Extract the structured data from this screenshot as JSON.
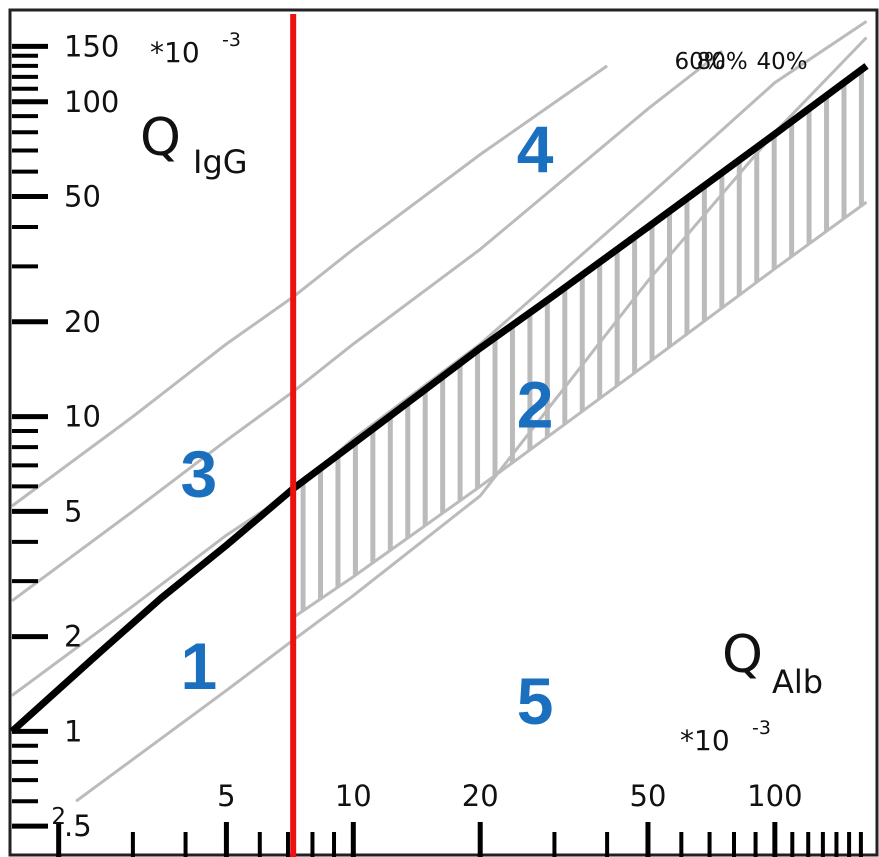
{
  "chart_data": {
    "type": "line",
    "x_scale": "log",
    "y_scale": "log",
    "xlim": [
      1.55,
      170
    ],
    "ylim": [
      0.42,
      190
    ],
    "x_tick_labels": [
      {
        "x": 2,
        "label": "2"
      },
      {
        "x": 5,
        "label": "5"
      },
      {
        "x": 10,
        "label": "10"
      },
      {
        "x": 20,
        "label": "20"
      },
      {
        "x": 50,
        "label": "50"
      },
      {
        "x": 100,
        "label": "100"
      }
    ],
    "y_tick_labels": [
      {
        "y": 0.5,
        "label": ".5"
      },
      {
        "y": 1,
        "label": "1"
      },
      {
        "y": 2,
        "label": "2"
      },
      {
        "y": 5,
        "label": "5"
      },
      {
        "y": 10,
        "label": "10"
      },
      {
        "y": 20,
        "label": "20"
      },
      {
        "y": 50,
        "label": "50"
      },
      {
        "y": 100,
        "label": "100"
      },
      {
        "y": 150,
        "label": "150"
      }
    ],
    "x_minor_ticks": [
      3,
      4,
      6,
      7,
      8,
      9,
      30,
      40,
      60,
      70,
      80,
      90,
      110,
      120,
      130,
      140,
      150,
      160
    ],
    "y_minor_ticks": [
      0.6,
      0.7,
      0.8,
      0.9,
      3,
      4,
      6,
      7,
      8,
      9,
      30,
      40,
      60,
      70,
      80,
      90,
      110,
      120,
      130,
      140
    ],
    "xlabel": {
      "main": "Q",
      "sub": "Alb",
      "factor": "*10",
      "exponent": "-3"
    },
    "ylabel": {
      "main": "Q",
      "sub": "IgG",
      "factor": "*10",
      "exponent": "-3"
    },
    "cutoff_line": {
      "x": 7.2,
      "color": "#ee1111"
    },
    "series": [
      {
        "role": "upper reference limit",
        "color": "#000000",
        "points": [
          [
            1.55,
            1.0
          ],
          [
            2.5,
            1.78
          ],
          [
            3.5,
            2.65
          ],
          [
            5,
            3.9
          ],
          [
            7.2,
            5.9
          ],
          [
            10,
            8.2
          ],
          [
            20,
            16.5
          ],
          [
            30,
            24.3
          ],
          [
            50,
            40
          ],
          [
            100,
            79
          ],
          [
            165,
            130
          ]
        ]
      },
      {
        "role": "lower reference limit",
        "color": "#bbbbbb",
        "points": [
          [
            7.2,
            2.3
          ],
          [
            10,
            3.1
          ],
          [
            20,
            6.0
          ],
          [
            50,
            14.8
          ],
          [
            100,
            29.5
          ],
          [
            165,
            48
          ]
        ]
      },
      {
        "role": "fraction line",
        "label": "40%",
        "color": "#bbbbbb",
        "points": [
          [
            2.2,
            0.6
          ],
          [
            5,
            1.35
          ],
          [
            7.2,
            1.95
          ],
          [
            10,
            2.7
          ],
          [
            20,
            5.6
          ],
          [
            50,
            27
          ],
          [
            100,
            80
          ],
          [
            165,
            160
          ]
        ]
      },
      {
        "role": "fraction line",
        "label": "60%",
        "color": "#bbbbbb",
        "points": [
          [
            1.55,
            1.3
          ],
          [
            3,
            2.5
          ],
          [
            5,
            4.2
          ],
          [
            7.2,
            5.8
          ],
          [
            10,
            8.5
          ],
          [
            20,
            17
          ],
          [
            50,
            50
          ],
          [
            100,
            115
          ],
          [
            165,
            180
          ]
        ]
      },
      {
        "role": "fraction line",
        "label": "80%",
        "color": "#bbbbbb",
        "points": [
          [
            1.55,
            2.6
          ],
          [
            3,
            5.0
          ],
          [
            5,
            8.4
          ],
          [
            7.2,
            12
          ],
          [
            10,
            17
          ],
          [
            20,
            34
          ],
          [
            50,
            95
          ],
          [
            75,
            145
          ]
        ]
      },
      {
        "role": "fraction line",
        "color": "#bbbbbb",
        "points": [
          [
            1.55,
            5.2
          ],
          [
            3,
            10
          ],
          [
            5,
            17
          ],
          [
            7.2,
            24
          ],
          [
            10,
            34
          ],
          [
            20,
            68
          ],
          [
            40,
            130
          ]
        ]
      }
    ],
    "hatched_region": {
      "color": "#bbbbbb",
      "x_from": 7.6,
      "x_to": 165,
      "x_step": 1.1,
      "between": [
        "upper reference limit",
        "lower reference limit"
      ]
    },
    "region_labels": [
      {
        "label": "1",
        "x": 4.3,
        "y": 1.55
      },
      {
        "label": "2",
        "x": 27,
        "y": 10.5
      },
      {
        "label": "3",
        "x": 4.3,
        "y": 6.3
      },
      {
        "label": "4",
        "x": 27,
        "y": 68
      },
      {
        "label": "5",
        "x": 27,
        "y": 1.2
      }
    ]
  }
}
